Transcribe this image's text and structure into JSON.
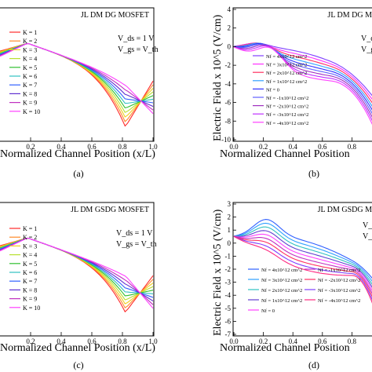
{
  "captions": [
    "(a)",
    "(b)",
    "(c)",
    "(d)"
  ],
  "chart_data": [
    {
      "type": "line",
      "panel": "a",
      "title": "JL DM DG MOSFET",
      "annotations": [
        "V_ds = 1 V",
        "V_gs = V_th"
      ],
      "xlabel": "Normalized Channel Position (x/L)",
      "ylabel": "",
      "xlim": [
        0,
        1.0
      ],
      "x_ticks": [
        "0.2",
        "0.4",
        "0.6",
        "0.8",
        "1.0"
      ],
      "y_ticks": [],
      "legend_placement": "center-left",
      "series": [
        {
          "name": "K = 1",
          "color": "#ff2a2a"
        },
        {
          "name": "K = 2",
          "color": "#ff8a2a"
        },
        {
          "name": "K = 3",
          "color": "#f0d020"
        },
        {
          "name": "K = 4",
          "color": "#b8e030"
        },
        {
          "name": "K = 5",
          "color": "#30c030"
        },
        {
          "name": "K = 6",
          "color": "#30c0c0"
        },
        {
          "name": "K = 7",
          "color": "#3060ff"
        },
        {
          "name": "K = 8",
          "color": "#6030d0"
        },
        {
          "name": "K = 9",
          "color": "#c030c0"
        },
        {
          "name": "K = 10",
          "color": "#ff40ff"
        }
      ]
    },
    {
      "type": "line",
      "panel": "b",
      "title": "JL DM DG M",
      "annotations": [
        "V_d",
        "V_g"
      ],
      "xlabel": "Normalized Channel Position",
      "ylabel": "Electric Field x 10^5 (V/cm)",
      "ylim": [
        -10,
        4
      ],
      "xlim": [
        0,
        1.0
      ],
      "x_ticks": [
        "0.0",
        "0.2",
        "0.4",
        "0.6",
        "0.8"
      ],
      "y_ticks": [
        "4",
        "2",
        "0",
        "-2",
        "-4",
        "-6",
        "-8",
        "-10"
      ],
      "legend_placement": "center",
      "series": [
        {
          "name": "Nf = 4x10^12 cm^2",
          "color": "#8040ff"
        },
        {
          "name": "Nf = 3x10^12 cm^2",
          "color": "#ff30ff"
        },
        {
          "name": "Nf = 2x10^12 cm^2",
          "color": "#ff3060"
        },
        {
          "name": "Nf = 1x10^12 cm^2",
          "color": "#30a0ff"
        },
        {
          "name": "Nf = 0",
          "color": "#3030ff"
        },
        {
          "name": "Nf = -1x10^12 cm^2",
          "color": "#6060ff"
        },
        {
          "name": "Nf = -2x10^12 cm^2",
          "color": "#a030c0"
        },
        {
          "name": "Nf = -3x10^12 cm^2",
          "color": "#c030ff"
        },
        {
          "name": "Nf = -4x10^12 cm^2",
          "color": "#ff40ff"
        }
      ]
    },
    {
      "type": "line",
      "panel": "c",
      "title": "JL DM GSDG MOSFET",
      "annotations": [
        "V_ds = 1 V",
        "V_gs = V_th"
      ],
      "xlabel": "Normalized Channel Position (x/L)",
      "ylabel": "",
      "xlim": [
        0,
        1.0
      ],
      "x_ticks": [
        "0.2",
        "0.4",
        "0.6",
        "0.8",
        "1.0"
      ],
      "y_ticks": [],
      "legend_placement": "center-left",
      "series": [
        {
          "name": "K = 1",
          "color": "#ff2a2a"
        },
        {
          "name": "K = 2",
          "color": "#ff8a2a"
        },
        {
          "name": "K = 3",
          "color": "#f0d020"
        },
        {
          "name": "K = 4",
          "color": "#b8e030"
        },
        {
          "name": "K = 5",
          "color": "#30c030"
        },
        {
          "name": "K = 6",
          "color": "#30c0c0"
        },
        {
          "name": "K = 7",
          "color": "#3060ff"
        },
        {
          "name": "K = 8",
          "color": "#6030d0"
        },
        {
          "name": "K = 9",
          "color": "#c030c0"
        },
        {
          "name": "K = 10",
          "color": "#ff40ff"
        }
      ]
    },
    {
      "type": "line",
      "panel": "d",
      "title": "JL DM GSDG M",
      "annotations": [
        "V_d",
        "V_g"
      ],
      "xlabel": "Normalized Channel Position",
      "ylabel": "Electric Field x 10^5 (V/cm)",
      "xlim": [
        0,
        1.0
      ],
      "x_ticks": [
        "0.0",
        "0.2",
        "0.4",
        "0.6",
        "0.8"
      ],
      "y_ticks": [
        "3",
        "2",
        "1",
        "0",
        "-1",
        "-2",
        "-3",
        "-4",
        "-5",
        "-6",
        "-7"
      ],
      "legend_placement": "bottom-center",
      "series": [
        {
          "name": "Nf = 4x10^12 cm^2",
          "color": "#3060ff"
        },
        {
          "name": "Nf = 3x10^12 cm^2",
          "color": "#30a0ff"
        },
        {
          "name": "Nf = 2x10^12 cm^2",
          "color": "#30c0c0"
        },
        {
          "name": "Nf = 1x10^12 cm^2",
          "color": "#6040d0"
        },
        {
          "name": "Nf = 0",
          "color": "#ff40ff"
        },
        {
          "name": "Nf = -1x10^12 cm^2",
          "color": "#c030c0"
        },
        {
          "name": "Nf = -2x10^12 cm^2",
          "color": "#ff3060"
        },
        {
          "name": "Nf = -3x10^12 cm^2",
          "color": "#8040ff"
        },
        {
          "name": "Nf = -4x10^12 cm^2",
          "color": "#ff2a80"
        }
      ]
    }
  ]
}
